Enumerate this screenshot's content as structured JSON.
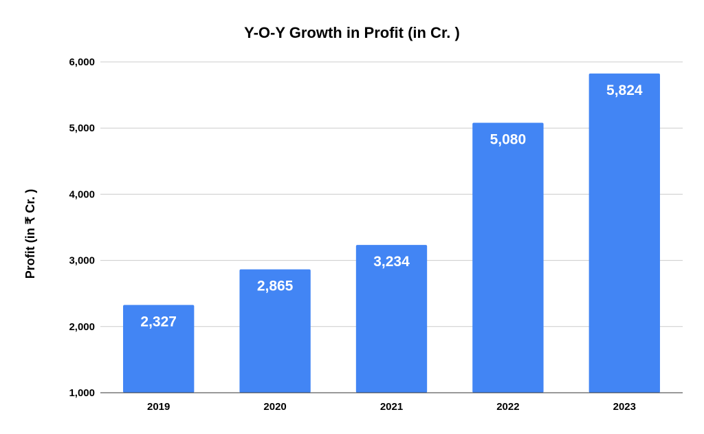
{
  "chart_data": {
    "type": "bar",
    "title": "Y-O-Y Growth in Profit (in Cr. )",
    "xlabel": "",
    "ylabel": "Profit (in ₹ Cr. )",
    "categories": [
      "2019",
      "2020",
      "2021",
      "2022",
      "2023"
    ],
    "values": [
      2327,
      2865,
      3234,
      5080,
      5824
    ],
    "value_labels": [
      "2,327",
      "2,865",
      "3,234",
      "5,080",
      "5,824"
    ],
    "ylim": [
      1000,
      6000
    ],
    "yticks": [
      1000,
      2000,
      3000,
      4000,
      5000,
      6000
    ],
    "ytick_labels": [
      "1,000",
      "2,000",
      "3,000",
      "4,000",
      "5,000",
      "6,000"
    ],
    "grid": true,
    "bar_color": "#4285f4",
    "label_color": "#ffffff"
  }
}
